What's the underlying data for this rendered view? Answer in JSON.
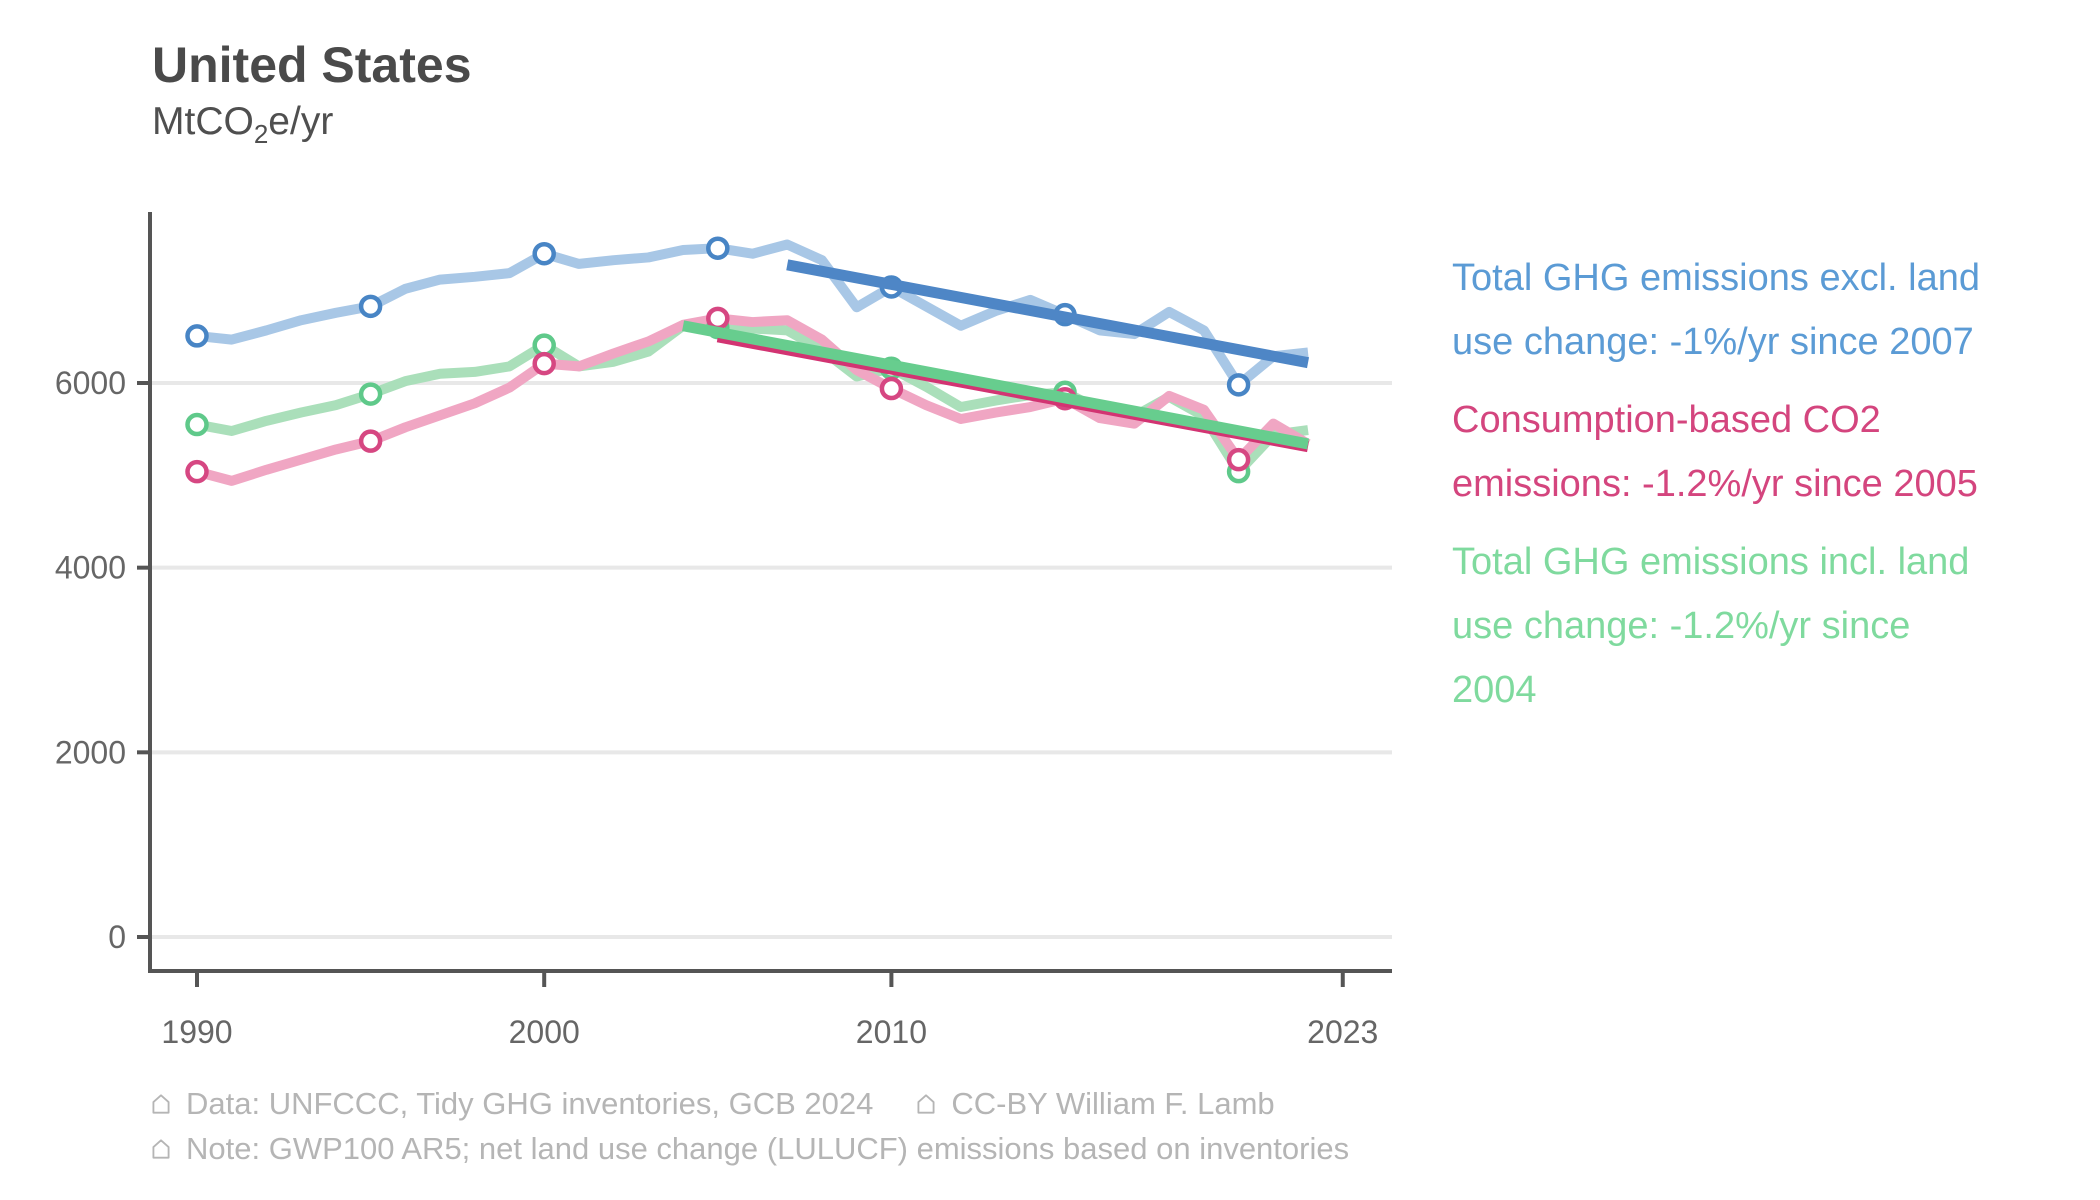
{
  "header": {
    "title": "United States",
    "unit_prefix": "MtCO",
    "unit_sub": "2",
    "unit_suffix": "e/yr"
  },
  "chart_data": {
    "type": "line",
    "title": "United States",
    "xlabel": "",
    "ylabel": "MtCO2e/yr",
    "grid": "horizontal major gridlines only",
    "legend_position": "right of plot, colored text blocks",
    "x_ticks": [
      1990,
      2000,
      2010,
      2023
    ],
    "y_ticks": [
      0,
      2000,
      4000,
      6000
    ],
    "xlim": [
      1988.6,
      2024.4
    ],
    "ylim": [
      -370,
      7850
    ],
    "marker_years": [
      1990,
      1995,
      2000,
      2005,
      2010,
      2015,
      2020
    ],
    "x": [
      1990,
      1991,
      1992,
      1993,
      1994,
      1995,
      1996,
      1997,
      1998,
      1999,
      2000,
      2001,
      2002,
      2003,
      2004,
      2005,
      2006,
      2007,
      2008,
      2009,
      2010,
      2011,
      2012,
      2013,
      2014,
      2015,
      2016,
      2017,
      2018,
      2019,
      2020,
      2021,
      2022
    ],
    "series": [
      {
        "id": "ghg_excl_luc",
        "name": "Total GHG emissions excl. land use change",
        "color_line": "#A8C7E6",
        "color_marker": "#4885C5",
        "values": [
          6510,
          6470,
          6570,
          6680,
          6760,
          6830,
          7020,
          7120,
          7150,
          7190,
          7400,
          7290,
          7330,
          7360,
          7440,
          7460,
          7400,
          7500,
          7330,
          6820,
          7040,
          6830,
          6620,
          6780,
          6900,
          6740,
          6570,
          6530,
          6770,
          6570,
          5980,
          6290,
          6330
        ]
      },
      {
        "id": "ghg_incl_luc",
        "name": "Total GHG emissions incl. land use change",
        "color_line": "#AADFBA",
        "color_marker": "#5FC98A",
        "values": [
          5550,
          5480,
          5590,
          5680,
          5760,
          5880,
          6020,
          6100,
          6120,
          6180,
          6410,
          6180,
          6230,
          6340,
          6620,
          6600,
          6590,
          6570,
          6360,
          6070,
          6160,
          5960,
          5740,
          5810,
          5870,
          5900,
          5710,
          5640,
          5850,
          5640,
          5040,
          5440,
          5490
        ]
      },
      {
        "id": "consumption_co2",
        "name": "Consumption-based CO2 emissions",
        "color_line": "#F0A6C3",
        "color_marker": "#D64782",
        "values": [
          5040,
          4940,
          5060,
          5170,
          5280,
          5370,
          5520,
          5650,
          5780,
          5950,
          6210,
          6180,
          6320,
          6450,
          6630,
          6700,
          6660,
          6680,
          6470,
          6140,
          5940,
          5760,
          5610,
          5680,
          5740,
          5830,
          5620,
          5560,
          5860,
          5710,
          5170,
          5560,
          5340
        ]
      }
    ],
    "trend_lines": [
      {
        "id": "trend_excl",
        "label": "-1%/yr since 2007",
        "color": "#4E86C6",
        "x0": 2007,
        "v0": 7280,
        "x1": 2022,
        "v1": 6220
      },
      {
        "id": "trend_cons",
        "label": "-1.2%/yr since 2005",
        "color": "#D23472",
        "x0": 2005,
        "v0": 6500,
        "x1": 2022,
        "v1": 5310
      },
      {
        "id": "trend_incl",
        "label": "-1.2%/yr since 2004",
        "color": "#67CD8E",
        "x0": 2004,
        "v0": 6620,
        "x1": 2022,
        "v1": 5340
      }
    ]
  },
  "legend": {
    "entries": [
      {
        "id": "excl",
        "color": "#5B9BD5",
        "lines": [
          "Total GHG emissions excl. land",
          "use change: -1%/yr since 2007"
        ]
      },
      {
        "id": "cons",
        "color": "#D4457E",
        "lines": [
          "Consumption-based CO2",
          "emissions: -1.2%/yr since 2005"
        ]
      },
      {
        "id": "incl",
        "color": "#7FDA9E",
        "lines": [
          "Total GHG emissions incl. land",
          "use change: -1.2%/yr since",
          "2004"
        ]
      }
    ]
  },
  "footer": {
    "lines": [
      {
        "segments": [
          {
            "icon": "house",
            "text": "Data: UNFCCC, Tidy GHG inventories, GCB 2024"
          },
          {
            "icon": "house",
            "text": "CC-BY William F. Lamb"
          }
        ]
      },
      {
        "segments": [
          {
            "icon": "house",
            "text": "Note: GWP100 AR5; net land use change (LULUCF) emissions based on inventories"
          }
        ]
      }
    ]
  },
  "style_colors": {
    "title": "#4a4a4a",
    "axis": "#555555",
    "tick_label": "#666666",
    "gridline": "#e8e8e8",
    "footer": "#b5b5b5",
    "background": "#ffffff"
  }
}
